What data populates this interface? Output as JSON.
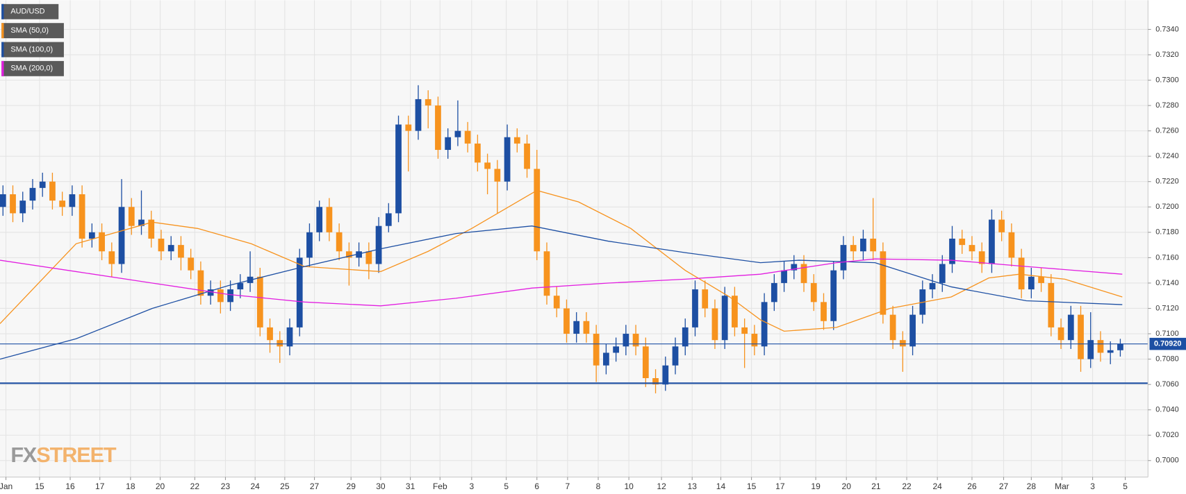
{
  "chart_data": {
    "type": "candlestick",
    "symbol": "AUD/USD",
    "up_color": "#1d4fa3",
    "down_color": "#f7931e",
    "xlim": [
      -0.3,
      115.8
    ],
    "ylim": [
      0.6987,
      0.7363
    ],
    "grid": true,
    "legend": "upper left",
    "watermark": [
      "FX",
      "STREET"
    ],
    "xticks": [
      {
        "value": 0.3,
        "label": "Jan"
      },
      {
        "value": 3.7,
        "label": "15"
      },
      {
        "value": 6.8,
        "label": "16"
      },
      {
        "value": 9.8,
        "label": "17"
      },
      {
        "value": 12.9,
        "label": "18"
      },
      {
        "value": 15.9,
        "label": "20"
      },
      {
        "value": 19.4,
        "label": "22"
      },
      {
        "value": 22.5,
        "label": "23"
      },
      {
        "value": 25.5,
        "label": "24"
      },
      {
        "value": 28.5,
        "label": "25"
      },
      {
        "value": 31.5,
        "label": "27"
      },
      {
        "value": 35.2,
        "label": "29"
      },
      {
        "value": 38.2,
        "label": "30"
      },
      {
        "value": 41.2,
        "label": "31"
      },
      {
        "value": 44.2,
        "label": "Feb"
      },
      {
        "value": 47.4,
        "label": "3"
      },
      {
        "value": 50.9,
        "label": "5"
      },
      {
        "value": 54,
        "label": "6"
      },
      {
        "value": 57.1,
        "label": "7"
      },
      {
        "value": 60.2,
        "label": "8"
      },
      {
        "value": 63.3,
        "label": "10"
      },
      {
        "value": 66.6,
        "label": "12"
      },
      {
        "value": 69.7,
        "label": "13"
      },
      {
        "value": 72.6,
        "label": "14"
      },
      {
        "value": 75.7,
        "label": "15"
      },
      {
        "value": 78.6,
        "label": "17"
      },
      {
        "value": 82.2,
        "label": "19"
      },
      {
        "value": 85.3,
        "label": "20"
      },
      {
        "value": 88.3,
        "label": "21"
      },
      {
        "value": 91.4,
        "label": "22"
      },
      {
        "value": 94.5,
        "label": "24"
      },
      {
        "value": 98,
        "label": "26"
      },
      {
        "value": 101.2,
        "label": "27"
      },
      {
        "value": 104,
        "label": "28"
      },
      {
        "value": 107.1,
        "label": "Mar"
      },
      {
        "value": 110.2,
        "label": "3"
      },
      {
        "value": 113.5,
        "label": "5"
      }
    ],
    "yticks": [
      {
        "value": 0.7,
        "label": "0.7000"
      },
      {
        "value": 0.702,
        "label": "0.7020"
      },
      {
        "value": 0.704,
        "label": "0.7040"
      },
      {
        "value": 0.706,
        "label": "0.7060"
      },
      {
        "value": 0.708,
        "label": "0.7080"
      },
      {
        "value": 0.71,
        "label": "0.7100"
      },
      {
        "value": 0.712,
        "label": "0.7120"
      },
      {
        "value": 0.714,
        "label": "0.7140"
      },
      {
        "value": 0.716,
        "label": "0.7160"
      },
      {
        "value": 0.718,
        "label": "0.7180"
      },
      {
        "value": 0.72,
        "label": "0.7200"
      },
      {
        "value": 0.722,
        "label": "0.7220"
      },
      {
        "value": 0.724,
        "label": "0.7240"
      },
      {
        "value": 0.726,
        "label": "0.7260"
      },
      {
        "value": 0.728,
        "label": "0.7280"
      },
      {
        "value": 0.73,
        "label": "0.7300"
      },
      {
        "value": 0.732,
        "label": "0.7320"
      },
      {
        "value": 0.734,
        "label": "0.7340"
      }
    ],
    "price_line": {
      "value": 0.7092,
      "label": "0.70920",
      "color": "#1d4fa3"
    },
    "support_line": {
      "value": 0.7061,
      "color": "#1d4fa3"
    },
    "open": [
      0.72,
      0.721,
      0.7195,
      0.7205,
      0.7215,
      0.722,
      0.7205,
      0.72,
      0.721,
      0.7175,
      0.718,
      0.7165,
      0.7155,
      0.72,
      0.7185,
      0.719,
      0.7175,
      0.7165,
      0.717,
      0.716,
      0.715,
      0.713,
      0.7135,
      0.7125,
      0.7135,
      0.714,
      0.7145,
      0.7105,
      0.7095,
      0.709,
      0.7105,
      0.716,
      0.718,
      0.72,
      0.718,
      0.7165,
      0.716,
      0.7165,
      0.7155,
      0.7185,
      0.7195,
      0.7265,
      0.726,
      0.7285,
      0.728,
      0.7245,
      0.7255,
      0.726,
      0.725,
      0.7235,
      0.723,
      0.722,
      0.7255,
      0.725,
      0.723,
      0.7165,
      0.713,
      0.712,
      0.71,
      0.711,
      0.71,
      0.7075,
      0.7085,
      0.709,
      0.71,
      0.709,
      0.7065,
      0.706,
      0.7075,
      0.709,
      0.7105,
      0.7135,
      0.712,
      0.7095,
      0.713,
      0.7105,
      0.71,
      0.709,
      0.7125,
      0.714,
      0.715,
      0.7155,
      0.714,
      0.7125,
      0.711,
      0.715,
      0.717,
      0.7165,
      0.7175,
      0.7165,
      0.7115,
      0.7095,
      0.709,
      0.7115,
      0.7135,
      0.714,
      0.7155,
      0.7175,
      0.717,
      0.7165,
      0.7155,
      0.719,
      0.718,
      0.716,
      0.7135,
      0.7145,
      0.714,
      0.7105,
      0.7095,
      0.7115,
      0.708,
      0.7095,
      0.7085,
      0.7087
    ],
    "high": [
      0.7217,
      0.7217,
      0.7212,
      0.7222,
      0.7227,
      0.7227,
      0.7212,
      0.7217,
      0.7217,
      0.7187,
      0.7187,
      0.7172,
      0.7222,
      0.7207,
      0.7213,
      0.7197,
      0.7182,
      0.7177,
      0.7177,
      0.7167,
      0.7157,
      0.7142,
      0.7142,
      0.7142,
      0.7147,
      0.7165,
      0.7152,
      0.7112,
      0.7102,
      0.7112,
      0.7167,
      0.7187,
      0.7205,
      0.7207,
      0.7187,
      0.7172,
      0.7172,
      0.7172,
      0.7192,
      0.7203,
      0.7272,
      0.7272,
      0.7296,
      0.7292,
      0.7287,
      0.7262,
      0.7284,
      0.7267,
      0.7257,
      0.7242,
      0.7237,
      0.7265,
      0.7262,
      0.7257,
      0.7245,
      0.7172,
      0.7137,
      0.7127,
      0.7117,
      0.7117,
      0.7107,
      0.7092,
      0.7097,
      0.7107,
      0.7107,
      0.7097,
      0.7072,
      0.7082,
      0.7097,
      0.7112,
      0.7142,
      0.7142,
      0.7127,
      0.7137,
      0.7137,
      0.7112,
      0.7107,
      0.7132,
      0.7147,
      0.7157,
      0.7162,
      0.7162,
      0.7147,
      0.7132,
      0.7157,
      0.7177,
      0.7177,
      0.7182,
      0.7207,
      0.7172,
      0.7122,
      0.7102,
      0.7122,
      0.7142,
      0.7147,
      0.7162,
      0.7185,
      0.7182,
      0.7177,
      0.7172,
      0.7198,
      0.7197,
      0.7187,
      0.7167,
      0.7152,
      0.7152,
      0.7147,
      0.7112,
      0.7122,
      0.7122,
      0.7117,
      0.7102,
      0.7094,
      0.7096
    ],
    "low": [
      0.7193,
      0.7188,
      0.7188,
      0.7198,
      0.7208,
      0.7198,
      0.7193,
      0.7193,
      0.7168,
      0.7168,
      0.7158,
      0.7145,
      0.7148,
      0.7178,
      0.7178,
      0.7168,
      0.7158,
      0.7158,
      0.715,
      0.7143,
      0.7123,
      0.7123,
      0.7116,
      0.7118,
      0.7128,
      0.7133,
      0.7098,
      0.7085,
      0.7077,
      0.7083,
      0.7098,
      0.7153,
      0.7173,
      0.7173,
      0.7158,
      0.7138,
      0.7153,
      0.7143,
      0.7148,
      0.718,
      0.7188,
      0.7228,
      0.7253,
      0.7262,
      0.7238,
      0.7238,
      0.7248,
      0.7243,
      0.7228,
      0.721,
      0.7195,
      0.7213,
      0.7243,
      0.7223,
      0.7158,
      0.7123,
      0.7113,
      0.7093,
      0.7093,
      0.7093,
      0.7062,
      0.7068,
      0.7078,
      0.7083,
      0.7083,
      0.7058,
      0.7053,
      0.7055,
      0.7068,
      0.7083,
      0.7098,
      0.7113,
      0.7088,
      0.7088,
      0.7098,
      0.7073,
      0.7083,
      0.7083,
      0.7118,
      0.7133,
      0.7143,
      0.7133,
      0.7118,
      0.7103,
      0.7103,
      0.7143,
      0.7158,
      0.7158,
      0.7158,
      0.7108,
      0.7088,
      0.707,
      0.7083,
      0.7108,
      0.7128,
      0.7133,
      0.7148,
      0.7163,
      0.7158,
      0.7148,
      0.7148,
      0.7173,
      0.7153,
      0.7128,
      0.7128,
      0.7133,
      0.7098,
      0.7088,
      0.7088,
      0.707,
      0.7073,
      0.7078,
      0.7076,
      0.7082
    ],
    "close": [
      0.721,
      0.7195,
      0.7205,
      0.7215,
      0.722,
      0.7205,
      0.72,
      0.721,
      0.7175,
      0.718,
      0.7165,
      0.7155,
      0.72,
      0.7185,
      0.719,
      0.7175,
      0.7165,
      0.717,
      0.716,
      0.715,
      0.713,
      0.7135,
      0.7125,
      0.7135,
      0.714,
      0.7145,
      0.7105,
      0.7095,
      0.709,
      0.7105,
      0.716,
      0.718,
      0.72,
      0.718,
      0.7165,
      0.716,
      0.7165,
      0.7155,
      0.7185,
      0.7195,
      0.7265,
      0.726,
      0.7285,
      0.728,
      0.7245,
      0.7255,
      0.726,
      0.725,
      0.7235,
      0.723,
      0.722,
      0.7255,
      0.725,
      0.723,
      0.7165,
      0.713,
      0.712,
      0.71,
      0.711,
      0.71,
      0.7075,
      0.7085,
      0.709,
      0.71,
      0.709,
      0.7065,
      0.706,
      0.7075,
      0.709,
      0.7105,
      0.7135,
      0.712,
      0.7095,
      0.713,
      0.7105,
      0.71,
      0.709,
      0.7125,
      0.714,
      0.715,
      0.7155,
      0.714,
      0.7125,
      0.711,
      0.715,
      0.717,
      0.7165,
      0.7175,
      0.7165,
      0.7115,
      0.7095,
      0.709,
      0.7115,
      0.7135,
      0.714,
      0.7155,
      0.7175,
      0.717,
      0.7165,
      0.7155,
      0.719,
      0.718,
      0.716,
      0.7135,
      0.7145,
      0.714,
      0.7105,
      0.7095,
      0.7115,
      0.708,
      0.7095,
      0.7085,
      0.7087,
      0.7092
    ],
    "series": [
      {
        "name": "SMA (50,0)",
        "color": "#f7931e",
        "x": [
          -0.3,
          7.4,
          15.1,
          19.7,
          25.1,
          30.5,
          38.2,
          43.0,
          47.4,
          54.0,
          58.2,
          63.5,
          69.0,
          73.5,
          76.6,
          79.0,
          84.3,
          89.7,
          95.9,
          99.7,
          102.8,
          107.4,
          113.2
        ],
        "values": [
          0.7108,
          0.7171,
          0.7188,
          0.7183,
          0.7171,
          0.7153,
          0.7149,
          0.7165,
          0.7183,
          0.7213,
          0.7204,
          0.7183,
          0.715,
          0.7129,
          0.7111,
          0.7102,
          0.7105,
          0.712,
          0.7129,
          0.7144,
          0.7147,
          0.7143,
          0.7129
        ]
      },
      {
        "name": "SMA (100,0)",
        "color": "#1d4fa3",
        "x": [
          -0.3,
          7.4,
          15.1,
          22.8,
          30.5,
          38.2,
          45.8,
          53.5,
          61.2,
          69.0,
          76.6,
          80.5,
          88.2,
          95.9,
          103.5,
          113.2
        ],
        "values": [
          0.708,
          0.7096,
          0.712,
          0.7138,
          0.7153,
          0.7167,
          0.7179,
          0.7185,
          0.7173,
          0.7164,
          0.7156,
          0.7158,
          0.7156,
          0.7137,
          0.7126,
          0.7123
        ]
      },
      {
        "name": "SMA (200,0)",
        "color": "#e21ee0",
        "x": [
          -0.3,
          7.4,
          15.1,
          22.8,
          30.5,
          38.2,
          45.8,
          53.5,
          61.2,
          69.0,
          76.6,
          84.3,
          88.2,
          95.9,
          103.5,
          113.2
        ],
        "values": [
          0.7158,
          0.7149,
          0.714,
          0.7131,
          0.7125,
          0.7122,
          0.7128,
          0.7136,
          0.714,
          0.7143,
          0.7147,
          0.7156,
          0.7159,
          0.7158,
          0.7153,
          0.7147
        ]
      }
    ]
  }
}
